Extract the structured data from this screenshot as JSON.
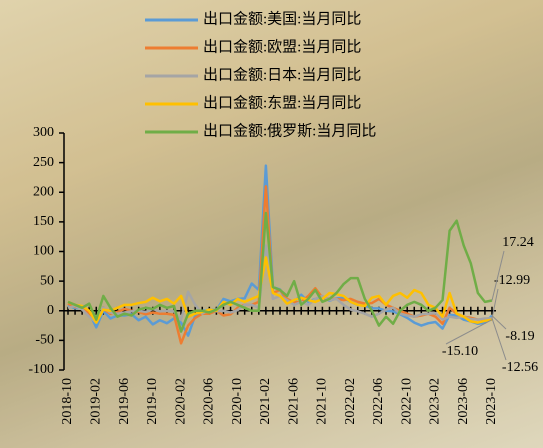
{
  "chart_data": {
    "type": "line",
    "categories": [
      "2018-10",
      null,
      null,
      null,
      "2019-02",
      null,
      null,
      null,
      "2019-06",
      null,
      null,
      null,
      "2019-10",
      null,
      null,
      null,
      "2020-02",
      null,
      null,
      null,
      "2020-06",
      null,
      null,
      null,
      "2020-10",
      null,
      null,
      null,
      "2021-02",
      null,
      null,
      null,
      "2021-06",
      null,
      null,
      null,
      "2021-10",
      null,
      null,
      null,
      "2022-02",
      null,
      null,
      null,
      "2022-06",
      null,
      null,
      null,
      "2022-10",
      null,
      null,
      null,
      "2023-02",
      null,
      null,
      null,
      "2023-06",
      null,
      null,
      null,
      "2023-10"
    ],
    "ylim": [
      -100,
      300
    ],
    "yticks": [
      -100,
      -50,
      0,
      50,
      100,
      150,
      200,
      250,
      300
    ],
    "series": [
      {
        "name": "出口金额:美国:当月同比",
        "color": "#5b9bd5",
        "values": [
          9,
          4,
          5,
          -3,
          -28,
          0,
          -13,
          -8,
          -8,
          -6,
          -16,
          -10,
          -23,
          -16,
          -21,
          -13,
          -20,
          -42,
          -8,
          0,
          2,
          1,
          20,
          16,
          20,
          21,
          46,
          35,
          245,
          40,
          36,
          15,
          15,
          27,
          15,
          20,
          23,
          17,
          21,
          22,
          15,
          10,
          9,
          4,
          4,
          0,
          -1,
          -6,
          -12,
          -20,
          -25,
          -21,
          -19,
          -30,
          -7,
          -8,
          -15,
          -18,
          -22,
          -20,
          -8.19
        ],
        "value_labels": [
          null,
          null,
          null,
          null,
          null,
          null,
          null,
          null,
          null,
          null,
          null,
          null,
          null,
          null,
          null,
          null,
          null,
          null,
          null,
          null,
          null,
          null,
          null,
          null,
          null,
          null,
          null,
          null,
          null,
          null,
          null,
          null,
          null,
          null,
          null,
          null,
          null,
          null,
          null,
          null,
          null,
          null,
          null,
          null,
          null,
          null,
          null,
          null,
          null,
          null,
          null,
          null,
          null,
          null,
          null,
          null,
          null,
          null,
          null,
          null,
          "-8.19"
        ]
      },
      {
        "name": "出口金额:欧盟:当月同比",
        "color": "#ed7d31",
        "values": [
          12,
          6,
          7,
          -5,
          -15,
          3,
          -5,
          -2,
          3,
          0,
          -2,
          -6,
          -3,
          -5,
          -5,
          -7,
          -55,
          -25,
          -12,
          -5,
          -5,
          0,
          -8,
          -6,
          5,
          10,
          10,
          15,
          210,
          30,
          35,
          20,
          14,
          15,
          25,
          38,
          22,
          20,
          20,
          18,
          20,
          15,
          12,
          13,
          20,
          10,
          5,
          0,
          -5,
          -10,
          -8,
          -5,
          -10,
          -22,
          5,
          -5,
          -10,
          -12,
          -15,
          -14,
          -12.99
        ],
        "value_labels": [
          null,
          null,
          null,
          null,
          null,
          null,
          null,
          null,
          null,
          null,
          null,
          null,
          null,
          null,
          null,
          null,
          null,
          null,
          null,
          null,
          null,
          null,
          null,
          null,
          null,
          null,
          null,
          null,
          null,
          null,
          null,
          null,
          null,
          null,
          null,
          null,
          null,
          null,
          null,
          null,
          null,
          null,
          null,
          null,
          null,
          null,
          null,
          null,
          null,
          null,
          null,
          null,
          null,
          null,
          null,
          null,
          null,
          null,
          null,
          null,
          "-12.99"
        ]
      },
      {
        "name": "出口金额:日本:当月同比",
        "color": "#a5a5a5",
        "values": [
          5,
          8,
          2,
          -10,
          -20,
          5,
          -3,
          -5,
          -3,
          -1,
          0,
          -2,
          3,
          -1,
          0,
          -1,
          -15,
          32,
          10,
          -5,
          2,
          -1,
          0,
          -3,
          1,
          10,
          10,
          5,
          110,
          20,
          25,
          18,
          10,
          15,
          10,
          20,
          25,
          18,
          20,
          10,
          2,
          -1,
          -5,
          -10,
          -5,
          2,
          5,
          -5,
          -8,
          -10,
          -6,
          -5,
          -4,
          -15,
          -10,
          -12,
          -10,
          -14,
          -15,
          -13,
          -12.56
        ],
        "value_labels": [
          null,
          null,
          null,
          null,
          null,
          null,
          null,
          null,
          null,
          null,
          null,
          null,
          null,
          null,
          null,
          null,
          null,
          null,
          null,
          null,
          null,
          null,
          null,
          null,
          null,
          null,
          null,
          null,
          null,
          null,
          null,
          null,
          null,
          null,
          null,
          null,
          null,
          null,
          null,
          null,
          null,
          null,
          null,
          null,
          null,
          null,
          null,
          null,
          null,
          null,
          null,
          null,
          null,
          null,
          null,
          null,
          null,
          null,
          null,
          null,
          "-12.56"
        ]
      },
      {
        "name": "出口金额:东盟:当月同比",
        "color": "#ffc000",
        "values": [
          15,
          10,
          8,
          0,
          -20,
          2,
          0,
          5,
          10,
          10,
          13,
          15,
          22,
          16,
          20,
          12,
          25,
          -10,
          -5,
          -2,
          2,
          0,
          15,
          10,
          20,
          15,
          20,
          25,
          90,
          30,
          25,
          12,
          18,
          22,
          18,
          15,
          20,
          30,
          28,
          25,
          15,
          10,
          8,
          22,
          25,
          10,
          25,
          30,
          22,
          35,
          30,
          10,
          5,
          -10,
          30,
          -5,
          -10,
          -18,
          -20,
          -17,
          -15.1
        ],
        "value_labels": [
          null,
          null,
          null,
          null,
          null,
          null,
          null,
          null,
          null,
          null,
          null,
          null,
          null,
          null,
          null,
          null,
          null,
          null,
          null,
          null,
          null,
          null,
          null,
          null,
          null,
          null,
          null,
          null,
          null,
          null,
          null,
          null,
          null,
          null,
          null,
          null,
          null,
          null,
          null,
          null,
          null,
          null,
          null,
          null,
          null,
          null,
          null,
          null,
          null,
          null,
          null,
          null,
          null,
          null,
          null,
          null,
          null,
          null,
          null,
          null,
          "-15.10"
        ]
      },
      {
        "name": "出口金额:俄罗斯:当月同比",
        "color": "#70ad47",
        "values": [
          15,
          10,
          5,
          12,
          -15,
          25,
          5,
          -10,
          -5,
          -8,
          2,
          5,
          3,
          10,
          5,
          8,
          -35,
          -5,
          0,
          0,
          -3,
          2,
          10,
          15,
          10,
          5,
          0,
          0,
          165,
          40,
          35,
          25,
          50,
          10,
          20,
          35,
          15,
          20,
          30,
          45,
          55,
          55,
          20,
          0,
          -25,
          -10,
          -22,
          0,
          10,
          15,
          10,
          0,
          5,
          18,
          135,
          152,
          110,
          80,
          30,
          15,
          17.24
        ],
        "value_labels": [
          null,
          null,
          null,
          null,
          null,
          null,
          null,
          null,
          null,
          null,
          null,
          null,
          null,
          null,
          null,
          null,
          null,
          null,
          null,
          null,
          null,
          null,
          null,
          null,
          null,
          null,
          null,
          null,
          null,
          null,
          null,
          null,
          null,
          null,
          null,
          null,
          null,
          null,
          null,
          null,
          null,
          null,
          null,
          null,
          null,
          null,
          null,
          null,
          null,
          null,
          null,
          null,
          null,
          null,
          null,
          null,
          null,
          null,
          null,
          null,
          "17.24"
        ]
      }
    ]
  }
}
